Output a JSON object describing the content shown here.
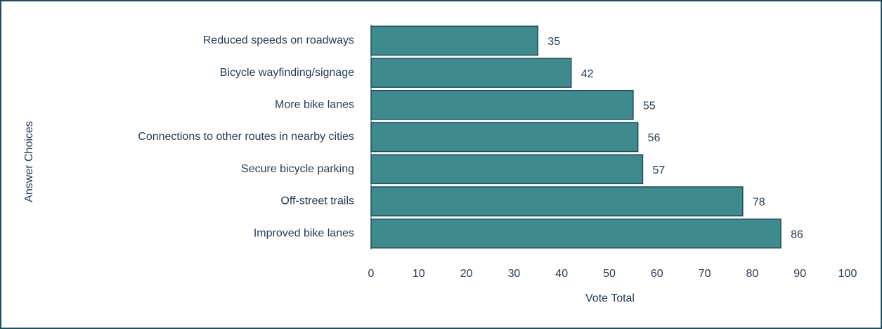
{
  "chart_data": {
    "type": "bar",
    "orientation": "horizontal",
    "categories": [
      "Reduced speeds on roadways",
      "Bicycle wayfinding/signage",
      "More bike lanes",
      "Connections to other routes in nearby cities",
      "Secure bicycle parking",
      "Off-street trails",
      "Improved bike lanes"
    ],
    "values": [
      35,
      42,
      55,
      56,
      57,
      78,
      86
    ],
    "color": "#3f8a8c",
    "x_label": "Vote Total",
    "y_label": "Answer Choices",
    "xlim": [
      0,
      100
    ],
    "xticks": [
      0,
      10,
      20,
      30,
      40,
      50,
      60,
      70,
      80,
      90,
      100
    ],
    "grid": false
  }
}
